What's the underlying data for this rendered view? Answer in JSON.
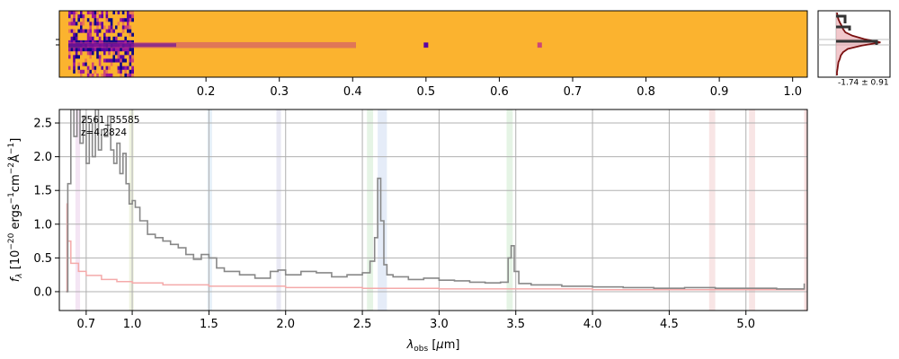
{
  "chart_data": [
    {
      "type": "heatmap",
      "panel": "2d-spectrum",
      "colormap": "plasma",
      "xlim": [
        0.0,
        1.02
      ],
      "x_ticks": [
        0.2,
        0.3,
        0.4,
        0.5,
        0.6,
        0.7,
        0.8,
        0.9,
        1.0
      ],
      "x_tick_labels": [
        "0.2",
        "0.3",
        "0.4",
        "0.5",
        "0.6",
        "0.7",
        "0.8",
        "0.9",
        "1.0"
      ],
      "emission_features_x": [
        0.5,
        0.655
      ]
    },
    {
      "type": "line",
      "panel": "spatial-profile",
      "annotation": "-1.74 ± 0.91",
      "profile": [
        0.02,
        0.03,
        0.05,
        0.08,
        0.12,
        0.15,
        0.2,
        0.35,
        0.6,
        0.95,
        0.55,
        0.25,
        0.15,
        0.1,
        0.08,
        0.05,
        0.04,
        0.03,
        0.02,
        0.02
      ]
    },
    {
      "type": "line",
      "panel": "1d-spectrum",
      "ylabel": "f_λ [10^−20 ergs^−1cm^−2Å^−1]",
      "xlabel": "λ_obs [μm]",
      "xlim": [
        0.525,
        5.4
      ],
      "ylim": [
        -0.28,
        2.7
      ],
      "grid": true,
      "x_ticks": [
        0.7,
        1.0,
        1.5,
        2.0,
        2.5,
        3.0,
        3.5,
        4.0,
        4.5,
        5.0
      ],
      "x_tick_labels": [
        "0.7",
        "1.0",
        "1.5",
        "2.0",
        "2.5",
        "3.0",
        "3.5",
        "4.0",
        "4.5",
        "5.0"
      ],
      "y_ticks": [
        0.0,
        0.5,
        1.0,
        1.5,
        2.0,
        2.5
      ],
      "y_tick_labels": [
        "0.0",
        "0.5",
        "1.0",
        "1.5",
        "2.0",
        "2.5"
      ],
      "annotation_lines": [
        "2561_35585",
        "z=4.2824"
      ],
      "flux_x": [
        0.57,
        0.58,
        0.6,
        0.62,
        0.64,
        0.66,
        0.68,
        0.7,
        0.72,
        0.74,
        0.76,
        0.78,
        0.8,
        0.82,
        0.84,
        0.86,
        0.88,
        0.9,
        0.92,
        0.94,
        0.96,
        0.98,
        1.0,
        1.02,
        1.05,
        1.1,
        1.15,
        1.2,
        1.25,
        1.3,
        1.35,
        1.4,
        1.45,
        1.5,
        1.55,
        1.6,
        1.7,
        1.8,
        1.9,
        1.95,
        2.0,
        2.1,
        2.2,
        2.3,
        2.4,
        2.5,
        2.55,
        2.58,
        2.6,
        2.62,
        2.64,
        2.66,
        2.7,
        2.8,
        2.9,
        3.0,
        3.1,
        3.2,
        3.3,
        3.4,
        3.45,
        3.47,
        3.49,
        3.52,
        3.6,
        3.8,
        4.0,
        4.2,
        4.4,
        4.6,
        4.8,
        5.0,
        5.2,
        5.35,
        5.38
      ],
      "flux_y": [
        0.0,
        1.6,
        2.7,
        2.3,
        2.7,
        2.2,
        2.6,
        1.9,
        2.5,
        2.0,
        2.7,
        2.1,
        2.4,
        2.3,
        2.6,
        2.1,
        1.9,
        2.2,
        1.75,
        2.05,
        1.6,
        1.3,
        1.35,
        1.25,
        1.05,
        0.85,
        0.8,
        0.75,
        0.7,
        0.65,
        0.55,
        0.48,
        0.55,
        0.5,
        0.35,
        0.3,
        0.25,
        0.2,
        0.3,
        0.32,
        0.25,
        0.3,
        0.28,
        0.22,
        0.25,
        0.28,
        0.45,
        0.8,
        1.68,
        1.05,
        0.4,
        0.25,
        0.22,
        0.18,
        0.2,
        0.17,
        0.16,
        0.14,
        0.13,
        0.14,
        0.5,
        0.68,
        0.3,
        0.12,
        0.1,
        0.08,
        0.07,
        0.06,
        0.05,
        0.06,
        0.05,
        0.05,
        0.04,
        0.04,
        0.12
      ],
      "error_x": [
        0.57,
        0.575,
        0.58,
        0.6,
        0.65,
        0.7,
        0.8,
        0.9,
        1.0,
        1.2,
        1.5,
        2.0,
        2.5,
        3.0,
        4.0,
        5.0,
        5.38
      ],
      "error_y": [
        0.0,
        1.3,
        0.75,
        0.42,
        0.3,
        0.24,
        0.18,
        0.15,
        0.13,
        0.1,
        0.08,
        0.06,
        0.05,
        0.04,
        0.03,
        0.03,
        0.03
      ],
      "line_bands": [
        {
          "x0": 0.63,
          "x1": 0.66,
          "color": "#cc88cc"
        },
        {
          "x0": 0.98,
          "x1": 1.01,
          "color": "#bbcc77"
        },
        {
          "x0": 1.49,
          "x1": 1.52,
          "color": "#88bbdd"
        },
        {
          "x0": 1.94,
          "x1": 1.97,
          "color": "#9999cc"
        },
        {
          "x0": 2.53,
          "x1": 2.57,
          "color": "#88cc88"
        },
        {
          "x0": 2.6,
          "x1": 2.66,
          "color": "#88aadd"
        },
        {
          "x0": 3.44,
          "x1": 3.48,
          "color": "#88cc88"
        },
        {
          "x0": 4.76,
          "x1": 4.8,
          "color": "#dd8888"
        },
        {
          "x0": 5.02,
          "x1": 5.06,
          "color": "#dd8888"
        },
        {
          "x0": 5.38,
          "x1": 5.4,
          "color": "#dd6666"
        }
      ],
      "colors": {
        "flux": "#888888",
        "error": "#f4aaaa",
        "grid": "#b0b0b0"
      }
    }
  ]
}
